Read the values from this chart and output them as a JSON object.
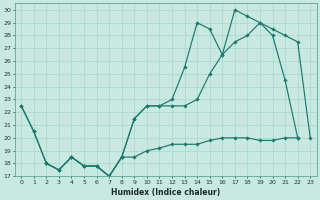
{
  "xlabel": "Humidex (Indice chaleur)",
  "bg_color": "#c8e8e0",
  "line_color": "#1a7a6e",
  "grid_color": "#a8d8d0",
  "xlim": [
    -0.5,
    23.5
  ],
  "ylim": [
    17,
    30.5
  ],
  "xticks": [
    0,
    1,
    2,
    3,
    4,
    5,
    6,
    7,
    8,
    9,
    10,
    11,
    12,
    13,
    14,
    15,
    16,
    17,
    18,
    19,
    20,
    21,
    22,
    23
  ],
  "yticks": [
    17,
    18,
    19,
    20,
    21,
    22,
    23,
    24,
    25,
    26,
    27,
    28,
    29,
    30
  ],
  "line1_x": [
    0,
    1,
    2,
    3,
    4,
    5,
    6,
    7,
    8,
    9,
    10,
    11,
    12,
    13,
    14,
    15,
    16,
    17,
    18,
    19,
    20,
    21,
    22
  ],
  "line1_y": [
    22.5,
    20.5,
    18.0,
    17.5,
    18.5,
    17.8,
    17.8,
    17.0,
    18.5,
    21.5,
    22.5,
    22.5,
    23.0,
    25.5,
    29.0,
    28.5,
    26.5,
    30.0,
    29.5,
    29.0,
    28.0,
    24.5,
    20.0
  ],
  "line2_x": [
    0,
    1,
    2,
    3,
    4,
    5,
    6,
    7,
    8,
    9,
    10,
    11,
    12,
    13,
    14,
    15,
    16,
    17,
    18,
    19,
    20,
    21,
    22,
    23
  ],
  "line2_y": [
    22.5,
    20.5,
    18.0,
    17.5,
    18.5,
    17.8,
    17.8,
    17.0,
    18.5,
    21.5,
    22.5,
    22.5,
    22.5,
    22.5,
    23.0,
    25.0,
    26.5,
    27.5,
    28.0,
    29.0,
    28.5,
    28.0,
    27.5,
    20.0
  ],
  "line3_x": [
    2,
    3,
    4,
    5,
    6,
    7,
    8,
    9,
    10,
    11,
    12,
    13,
    14,
    15,
    16,
    17,
    18,
    19,
    20,
    21,
    22
  ],
  "line3_y": [
    18.0,
    17.5,
    18.5,
    17.8,
    17.8,
    17.0,
    18.5,
    18.5,
    19.0,
    19.2,
    19.5,
    19.5,
    19.5,
    19.8,
    20.0,
    20.0,
    20.0,
    19.8,
    19.8,
    20.0,
    20.0
  ]
}
